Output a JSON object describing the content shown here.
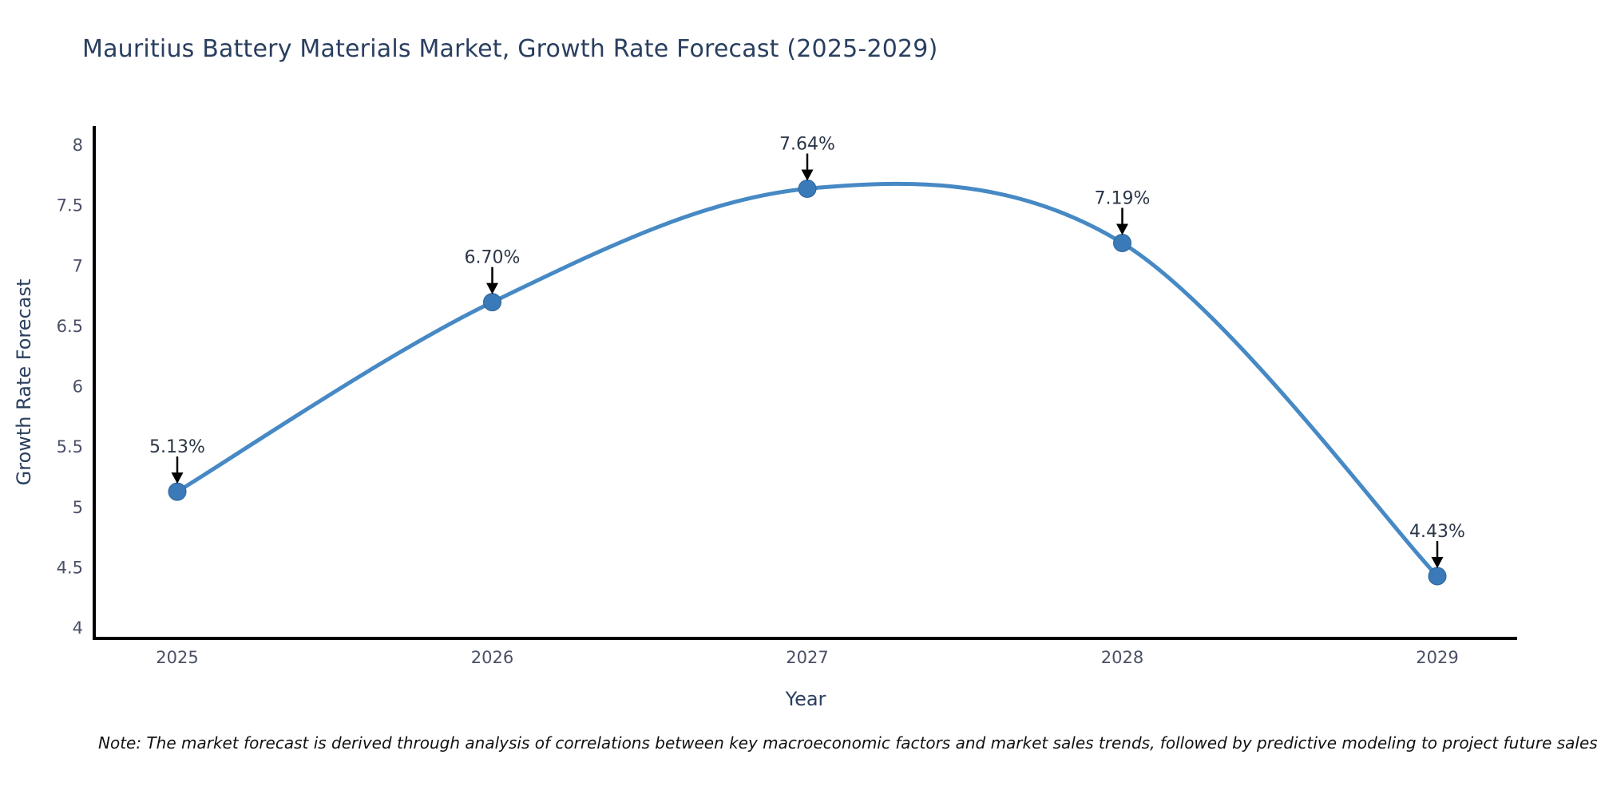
{
  "chart_data": {
    "type": "line",
    "title": "Mauritius Battery Materials Market, Growth Rate Forecast (2025-2029)",
    "xlabel": "Year",
    "ylabel": "Growth Rate Forecast",
    "x": [
      "2025",
      "2026",
      "2027",
      "2028",
      "2029"
    ],
    "values": [
      5.13,
      6.7,
      7.64,
      7.19,
      4.43
    ],
    "point_labels": [
      "5.13%",
      "6.70%",
      "7.64%",
      "7.19%",
      "4.43%"
    ],
    "yticks": [
      4,
      4.5,
      5,
      5.5,
      6,
      6.5,
      7,
      7.5,
      8
    ],
    "ylim": [
      3.91,
      8.16
    ],
    "grid": false,
    "legend": "none",
    "line_shape": "spline",
    "annotation_style": "down-arrow",
    "colors": {
      "line": "#4689c4",
      "marker": "#3a7ab8",
      "marker_edge": "#2e6399",
      "axis": "#000000",
      "title_text": "#2a3f5f",
      "tick_text": "#4a5066",
      "annotation_text": "#2b3648",
      "arrow": "#000000",
      "note_text": "#111111"
    }
  },
  "note": {
    "text": "Note: The market forecast is derived through analysis of correlations between key macroeconomic factors and market sales trends, followed by predictive modeling to project future sales"
  }
}
